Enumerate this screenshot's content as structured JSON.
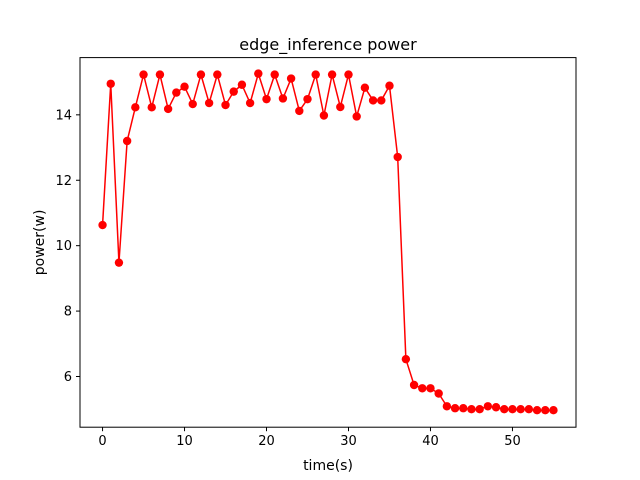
{
  "chart_data": {
    "type": "line",
    "title": "edge_inference power",
    "xlabel": "time(s)",
    "ylabel": "power(w)",
    "xlim": [
      -2.75,
      57.75
    ],
    "ylim": [
      4.45,
      15.75
    ],
    "grid": false,
    "legend": "none",
    "xticks": [
      0,
      10,
      20,
      30,
      40,
      50
    ],
    "yticks": [
      6,
      8,
      10,
      12,
      14
    ],
    "series": [
      {
        "color": "#ff0000",
        "x": [
          0,
          1,
          2,
          3,
          4,
          5,
          6,
          7,
          8,
          9,
          10,
          11,
          12,
          13,
          14,
          15,
          16,
          17,
          18,
          19,
          20,
          21,
          22,
          23,
          24,
          25,
          26,
          27,
          28,
          29,
          30,
          31,
          32,
          33,
          34,
          35,
          36,
          37,
          38,
          39,
          40,
          41,
          42,
          43,
          44,
          45,
          46,
          47,
          48,
          49,
          50,
          51,
          52,
          53,
          54,
          55
        ],
        "y": [
          10.63,
          14.95,
          9.48,
          13.2,
          14.23,
          15.23,
          14.23,
          15.23,
          14.18,
          14.68,
          14.86,
          14.33,
          15.23,
          14.36,
          15.23,
          14.3,
          14.71,
          14.92,
          14.36,
          15.26,
          14.48,
          15.23,
          14.5,
          15.11,
          14.12,
          14.48,
          15.23,
          13.98,
          15.23,
          14.24,
          15.23,
          13.95,
          14.83,
          14.44,
          14.44,
          14.89,
          12.71,
          6.53,
          5.74,
          5.64,
          5.64,
          5.48,
          5.09,
          5.03,
          5.03,
          5.0,
          5.0,
          5.09,
          5.06,
          5.0,
          5.0,
          5.0,
          5.0,
          4.97,
          4.97,
          4.97
        ]
      }
    ]
  }
}
